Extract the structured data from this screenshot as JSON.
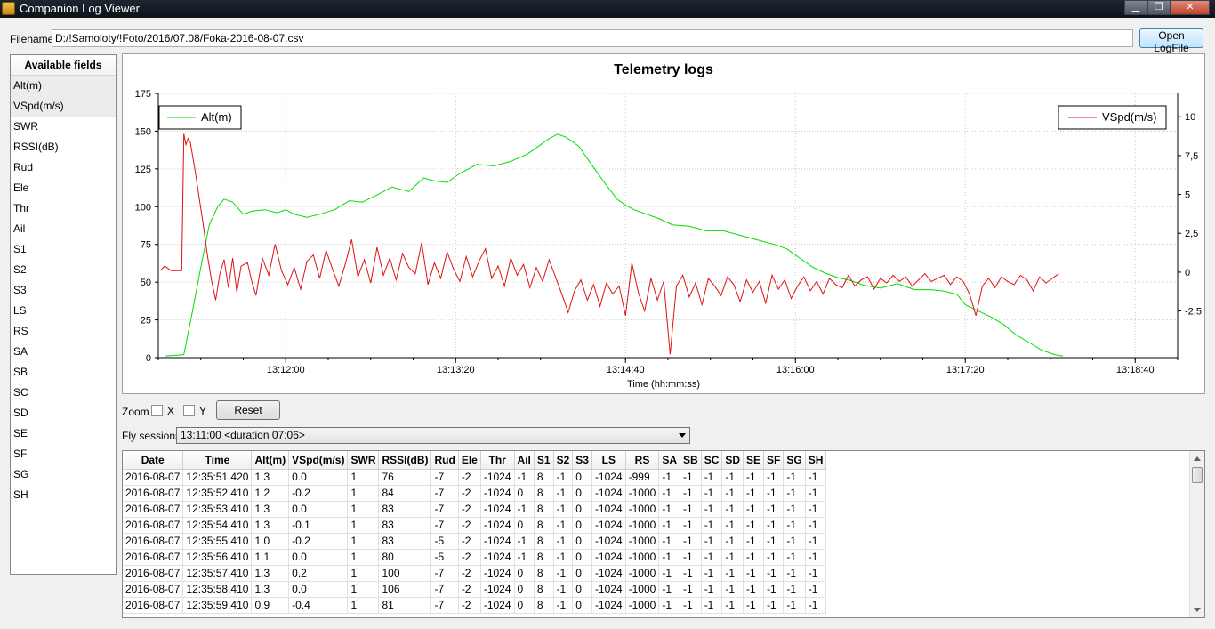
{
  "window": {
    "title": "Companion Log Viewer",
    "minimize": "▁",
    "maximize": "❐",
    "close": "✕"
  },
  "file": {
    "label": "Filename",
    "value": "D:/!Samoloty/!Foto/2016/07.08/Foka-2016-08-07.csv",
    "open_button": "Open LogFile"
  },
  "fields": {
    "header": "Available fields",
    "items": [
      "Alt(m)",
      "VSpd(m/s)",
      "SWR",
      "RSSI(dB)",
      "Rud",
      "Ele",
      "Thr",
      "Ail",
      "S1",
      "S2",
      "S3",
      "LS",
      "RS",
      "SA",
      "SB",
      "SC",
      "SD",
      "SE",
      "SF",
      "SG",
      "SH"
    ],
    "selected": [
      "Alt(m)",
      "VSpd(m/s)"
    ]
  },
  "zoom": {
    "label": "Zoom",
    "x_label": "X",
    "y_label": "Y",
    "reset": "Reset"
  },
  "sessions": {
    "label": "Fly sessions",
    "selected": "13:11:00 <duration 07:06>"
  },
  "colors": {
    "alt": "#00dd00",
    "vspd": "#dd1111"
  },
  "chart_data": {
    "type": "line",
    "title": "Telemetry logs",
    "xlabel": "Time (hh:mm:ss)",
    "x_ticks": [
      "13:12:00",
      "13:13:20",
      "13:14:40",
      "13:16:00",
      "13:17:20",
      "13:18:40"
    ],
    "x_tick_seconds": [
      720,
      800,
      880,
      960,
      1040,
      1120
    ],
    "xlim": [
      "13:11:00",
      "13:19:00"
    ],
    "y_left": {
      "ticks": [
        0,
        25,
        50,
        75,
        100,
        125,
        150,
        175
      ],
      "lim": [
        0,
        175
      ]
    },
    "y_right": {
      "ticks": [
        "-2,5",
        "0",
        "2,5",
        "5",
        "7,5",
        "10"
      ],
      "tick_values": [
        -2.5,
        0,
        2.5,
        5,
        7.5,
        10
      ],
      "lim": [
        -5.5,
        11.5
      ]
    },
    "grid": true,
    "series": [
      {
        "name": "Alt(m)",
        "axis": "left",
        "legend": "top-left",
        "x": [
          "13:11:03",
          "13:11:12",
          "13:11:16",
          "13:11:20",
          "13:11:24",
          "13:11:28",
          "13:11:31",
          "13:11:35",
          "13:11:40",
          "13:11:44",
          "13:11:50",
          "13:11:56",
          "13:12:00",
          "13:12:04",
          "13:12:10",
          "13:12:16",
          "13:12:23",
          "13:12:30",
          "13:12:36",
          "13:12:42",
          "13:12:50",
          "13:12:58",
          "13:13:05",
          "13:13:10",
          "13:13:16",
          "13:13:22",
          "13:13:26",
          "13:13:30",
          "13:13:38",
          "13:13:46",
          "13:13:54",
          "13:14:00",
          "13:14:04",
          "13:14:08",
          "13:14:12",
          "13:14:18",
          "13:14:24",
          "13:14:30",
          "13:14:36",
          "13:14:40",
          "13:14:44",
          "13:14:50",
          "13:14:56",
          "13:15:02",
          "13:15:10",
          "13:15:18",
          "13:15:26",
          "13:15:34",
          "13:15:42",
          "13:15:50",
          "13:15:56",
          "13:16:02",
          "13:16:08",
          "13:16:14",
          "13:16:20",
          "13:16:26",
          "13:16:32",
          "13:16:40",
          "13:16:48",
          "13:16:56",
          "13:17:04",
          "13:17:10",
          "13:17:16",
          "13:17:20",
          "13:17:26",
          "13:17:32",
          "13:17:38",
          "13:17:44",
          "13:17:50",
          "13:17:56",
          "13:18:02",
          "13:18:06"
        ],
        "y": [
          1,
          2,
          30,
          60,
          88,
          100,
          105,
          103,
          95,
          97,
          98,
          96,
          98,
          95,
          93,
          95,
          98,
          104,
          103,
          107,
          113,
          110,
          119,
          117,
          116,
          122,
          125,
          128,
          127,
          130,
          135,
          141,
          145,
          148,
          146,
          140,
          128,
          116,
          105,
          101,
          98,
          95,
          92,
          88,
          87,
          84,
          84,
          81,
          78,
          75,
          72,
          66,
          60,
          56,
          53,
          51,
          48,
          46,
          49,
          45,
          45,
          44,
          42,
          35,
          31,
          27,
          22,
          15,
          10,
          5,
          2,
          1
        ]
      },
      {
        "name": "VSpd(m/s)",
        "axis": "right",
        "legend": "top-right",
        "x": [
          "13:11:01",
          "13:11:03",
          "13:11:06",
          "13:11:08",
          "13:11:11",
          "13:11:12",
          "13:11:13",
          "13:11:14",
          "13:11:15",
          "13:11:17",
          "13:11:19",
          "13:11:21",
          "13:11:23",
          "13:11:25",
          "13:11:27",
          "13:11:29",
          "13:11:31",
          "13:11:33",
          "13:11:35",
          "13:11:37",
          "13:11:39",
          "13:11:42",
          "13:11:44",
          "13:11:46",
          "13:11:49",
          "13:11:52",
          "13:11:55",
          "13:11:58",
          "13:12:01",
          "13:12:04",
          "13:12:07",
          "13:12:10",
          "13:12:13",
          "13:12:16",
          "13:12:19",
          "13:12:22",
          "13:12:25",
          "13:12:28",
          "13:12:31",
          "13:12:34",
          "13:12:37",
          "13:12:40",
          "13:12:43",
          "13:12:46",
          "13:12:49",
          "13:12:52",
          "13:12:55",
          "13:12:58",
          "13:13:01",
          "13:13:04",
          "13:13:07",
          "13:13:10",
          "13:13:13",
          "13:13:16",
          "13:13:19",
          "13:13:22",
          "13:13:25",
          "13:13:28",
          "13:13:31",
          "13:13:34",
          "13:13:37",
          "13:13:40",
          "13:13:43",
          "13:13:46",
          "13:13:49",
          "13:13:52",
          "13:13:55",
          "13:13:58",
          "13:14:01",
          "13:14:04",
          "13:14:07",
          "13:14:10",
          "13:14:13",
          "13:14:16",
          "13:14:19",
          "13:14:22",
          "13:14:25",
          "13:14:28",
          "13:14:31",
          "13:14:34",
          "13:14:37",
          "13:14:40",
          "13:14:43",
          "13:14:46",
          "13:14:49",
          "13:14:52",
          "13:14:55",
          "13:14:58",
          "13:15:01",
          "13:15:04",
          "13:15:07",
          "13:15:10",
          "13:15:13",
          "13:15:16",
          "13:15:19",
          "13:15:22",
          "13:15:25",
          "13:15:28",
          "13:15:31",
          "13:15:34",
          "13:15:37",
          "13:15:40",
          "13:15:43",
          "13:15:46",
          "13:15:49",
          "13:15:52",
          "13:15:55",
          "13:15:58",
          "13:16:01",
          "13:16:04",
          "13:16:07",
          "13:16:10",
          "13:16:13",
          "13:16:16",
          "13:16:19",
          "13:16:22",
          "13:16:25",
          "13:16:28",
          "13:16:31",
          "13:16:34",
          "13:16:37",
          "13:16:40",
          "13:16:43",
          "13:16:46",
          "13:16:49",
          "13:16:52",
          "13:16:55",
          "13:16:58",
          "13:17:01",
          "13:17:04",
          "13:17:07",
          "13:17:10",
          "13:17:13",
          "13:17:16",
          "13:17:19",
          "13:17:22",
          "13:17:25",
          "13:17:28",
          "13:17:31",
          "13:17:34",
          "13:17:37",
          "13:17:40",
          "13:17:43",
          "13:17:46",
          "13:17:49",
          "13:17:52",
          "13:17:55",
          "13:17:58",
          "13:18:01",
          "13:18:04"
        ],
        "y": [
          0.1,
          0.4,
          0.1,
          0.1,
          0.1,
          8.9,
          8.2,
          8.6,
          8.4,
          6.8,
          5.0,
          3.2,
          1.2,
          -0.5,
          -1.8,
          -0.1,
          0.8,
          -1.0,
          0.9,
          -1.3,
          0.4,
          0.6,
          -0.6,
          -1.5,
          0.9,
          -0.2,
          1.8,
          0.1,
          -0.8,
          0.3,
          -1.1,
          0.7,
          1.1,
          -0.4,
          1.4,
          0.2,
          -0.9,
          0.5,
          2.1,
          -0.3,
          0.8,
          -0.7,
          1.6,
          -0.2,
          0.9,
          -0.5,
          1.2,
          0.3,
          -0.1,
          1.9,
          -0.8,
          0.6,
          -0.4,
          1.3,
          0.2,
          -0.6,
          1.0,
          -0.3,
          0.7,
          1.5,
          -0.4,
          0.4,
          -0.9,
          0.9,
          -0.2,
          0.5,
          -1.0,
          0.3,
          -0.6,
          0.8,
          -0.3,
          -1.4,
          -2.6,
          -1.2,
          -0.5,
          -1.8,
          -0.8,
          -2.2,
          -0.7,
          -1.4,
          -0.9,
          -2.8,
          0.6,
          -1.3,
          -2.5,
          -0.4,
          -1.8,
          -0.6,
          -5.3,
          -0.9,
          -0.2,
          -1.6,
          -0.7,
          -2.1,
          -0.4,
          -0.9,
          -1.5,
          -0.3,
          -0.8,
          -1.9,
          -0.5,
          -1.3,
          -0.6,
          -2.0,
          -0.2,
          -1.1,
          -0.5,
          -1.7,
          -0.9,
          -0.3,
          -1.2,
          -0.6,
          -1.4,
          -0.4,
          -0.8,
          -1.0,
          -0.2,
          -0.9,
          -0.5,
          -0.3,
          -1.1,
          -0.4,
          -0.7,
          -0.2,
          -0.6,
          -0.3,
          -0.9,
          -0.5,
          -0.1,
          -0.6,
          -0.4,
          -0.2,
          -0.8,
          -0.3,
          -0.6,
          -1.4,
          -2.8,
          -0.9,
          -0.4,
          -1.0,
          -0.3,
          -0.6,
          -0.8,
          -0.2,
          -0.5,
          -1.2,
          -0.3,
          -0.7,
          -0.4,
          -0.1
        ]
      }
    ]
  },
  "table": {
    "columns": [
      "Date",
      "Time",
      "Alt(m)",
      "VSpd(m/s)",
      "SWR",
      "RSSI(dB)",
      "Rud",
      "Ele",
      "Thr",
      "Ail",
      "S1",
      "S2",
      "S3",
      "LS",
      "RS",
      "SA",
      "SB",
      "SC",
      "SD",
      "SE",
      "SF",
      "SG",
      "SH"
    ],
    "rows": [
      [
        "2016-08-07",
        "12:35:51.420",
        "1.3",
        "0.0",
        "1",
        "76",
        "-7",
        "-2",
        "-1024",
        "-1",
        "8",
        "-1",
        "0",
        "-1024",
        "-999",
        "-1",
        "-1",
        "-1",
        "-1",
        "-1",
        "-1",
        "-1",
        "-1"
      ],
      [
        "2016-08-07",
        "12:35:52.410",
        "1.2",
        "-0.2",
        "1",
        "84",
        "-7",
        "-2",
        "-1024",
        "0",
        "8",
        "-1",
        "0",
        "-1024",
        "-1000",
        "-1",
        "-1",
        "-1",
        "-1",
        "-1",
        "-1",
        "-1",
        "-1"
      ],
      [
        "2016-08-07",
        "12:35:53.410",
        "1.3",
        "0.0",
        "1",
        "83",
        "-7",
        "-2",
        "-1024",
        "-1",
        "8",
        "-1",
        "0",
        "-1024",
        "-1000",
        "-1",
        "-1",
        "-1",
        "-1",
        "-1",
        "-1",
        "-1",
        "-1"
      ],
      [
        "2016-08-07",
        "12:35:54.410",
        "1.3",
        "-0.1",
        "1",
        "83",
        "-7",
        "-2",
        "-1024",
        "0",
        "8",
        "-1",
        "0",
        "-1024",
        "-1000",
        "-1",
        "-1",
        "-1",
        "-1",
        "-1",
        "-1",
        "-1",
        "-1"
      ],
      [
        "2016-08-07",
        "12:35:55.410",
        "1.0",
        "-0.2",
        "1",
        "83",
        "-5",
        "-2",
        "-1024",
        "-1",
        "8",
        "-1",
        "0",
        "-1024",
        "-1000",
        "-1",
        "-1",
        "-1",
        "-1",
        "-1",
        "-1",
        "-1",
        "-1"
      ],
      [
        "2016-08-07",
        "12:35:56.410",
        "1.1",
        "0.0",
        "1",
        "80",
        "-5",
        "-2",
        "-1024",
        "-1",
        "8",
        "-1",
        "0",
        "-1024",
        "-1000",
        "-1",
        "-1",
        "-1",
        "-1",
        "-1",
        "-1",
        "-1",
        "-1"
      ],
      [
        "2016-08-07",
        "12:35:57.410",
        "1.3",
        "0.2",
        "1",
        "100",
        "-7",
        "-2",
        "-1024",
        "0",
        "8",
        "-1",
        "0",
        "-1024",
        "-1000",
        "-1",
        "-1",
        "-1",
        "-1",
        "-1",
        "-1",
        "-1",
        "-1"
      ],
      [
        "2016-08-07",
        "12:35:58.410",
        "1.3",
        "0.0",
        "1",
        "106",
        "-7",
        "-2",
        "-1024",
        "0",
        "8",
        "-1",
        "0",
        "-1024",
        "-1000",
        "-1",
        "-1",
        "-1",
        "-1",
        "-1",
        "-1",
        "-1",
        "-1"
      ],
      [
        "2016-08-07",
        "12:35:59.410",
        "0.9",
        "-0.4",
        "1",
        "81",
        "-7",
        "-2",
        "-1024",
        "0",
        "8",
        "-1",
        "0",
        "-1024",
        "-1000",
        "-1",
        "-1",
        "-1",
        "-1",
        "-1",
        "-1",
        "-1",
        "-1"
      ]
    ]
  }
}
